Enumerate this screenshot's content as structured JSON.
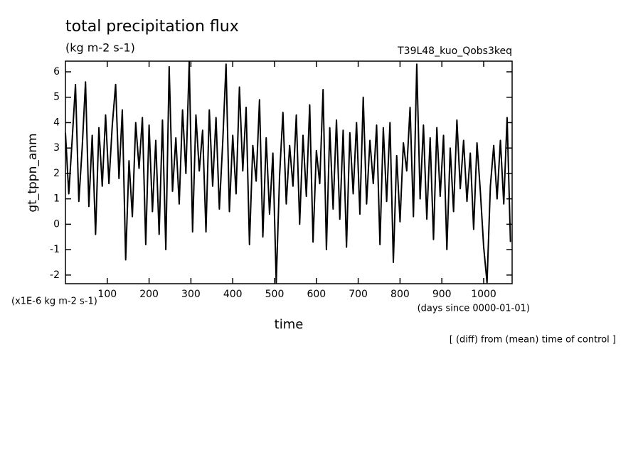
{
  "chart_data": {
    "type": "line",
    "title": "total precipitation flux",
    "subtitle": "(kg m-2 s-1)",
    "run_label": "T39L48_kuo_Qobs3keq",
    "y_label": "gt_tppn_anm",
    "y_units": "(x1E-6 kg m-2 s-1)",
    "x_label": "time",
    "x_units": "(days since 0000-01-01)",
    "note": "[ (diff) from (mean) time of control ]",
    "xlim": [
      0,
      1068
    ],
    "ylim": [
      -2.34,
      6.42
    ],
    "xticks": [
      100,
      200,
      300,
      400,
      500,
      600,
      700,
      800,
      900,
      1000
    ],
    "yticks": [
      -2,
      -1,
      0,
      1,
      2,
      3,
      4,
      5,
      6
    ],
    "x": [
      0,
      8,
      16,
      24,
      32,
      40,
      48,
      56,
      64,
      72,
      80,
      88,
      96,
      104,
      112,
      120,
      128,
      136,
      144,
      152,
      160,
      168,
      176,
      184,
      192,
      200,
      208,
      216,
      224,
      232,
      240,
      248,
      256,
      264,
      272,
      280,
      288,
      296,
      304,
      312,
      320,
      328,
      336,
      344,
      352,
      360,
      368,
      376,
      384,
      392,
      400,
      408,
      416,
      424,
      432,
      440,
      448,
      456,
      464,
      472,
      480,
      488,
      496,
      504,
      512,
      520,
      528,
      536,
      544,
      552,
      560,
      568,
      576,
      584,
      592,
      600,
      608,
      616,
      624,
      632,
      640,
      648,
      656,
      664,
      672,
      680,
      688,
      696,
      704,
      712,
      720,
      728,
      736,
      744,
      752,
      760,
      768,
      776,
      784,
      792,
      800,
      808,
      816,
      824,
      832,
      840,
      848,
      856,
      864,
      872,
      880,
      888,
      896,
      904,
      912,
      920,
      928,
      936,
      944,
      952,
      960,
      968,
      976,
      984,
      992,
      1000,
      1008,
      1016,
      1024,
      1032,
      1040,
      1048,
      1056,
      1064
    ],
    "series": [
      {
        "color": "#000000",
        "values": [
          3.6,
          1.2,
          3.3,
          5.5,
          0.9,
          3.0,
          5.6,
          0.7,
          3.5,
          -0.4,
          3.8,
          1.5,
          4.3,
          1.6,
          3.9,
          5.5,
          1.8,
          4.5,
          -1.4,
          2.5,
          0.3,
          4.0,
          2.2,
          4.2,
          -0.8,
          3.9,
          0.5,
          3.3,
          -0.4,
          4.1,
          -1.0,
          6.2,
          1.3,
          3.4,
          0.8,
          4.5,
          2.0,
          6.4,
          -0.3,
          4.3,
          2.1,
          3.7,
          -0.3,
          4.5,
          1.5,
          4.2,
          0.6,
          3.2,
          6.3,
          0.5,
          3.5,
          1.2,
          5.4,
          2.1,
          4.6,
          -0.8,
          3.1,
          1.7,
          4.9,
          -0.5,
          3.4,
          0.4,
          2.8,
          -2.3,
          1.9,
          4.4,
          0.8,
          3.1,
          1.5,
          4.3,
          0.0,
          3.5,
          1.1,
          4.7,
          -0.7,
          2.9,
          1.6,
          5.3,
          -1.0,
          3.8,
          0.6,
          4.1,
          0.2,
          3.7,
          -0.9,
          3.6,
          1.2,
          4.0,
          0.4,
          5.0,
          0.8,
          3.3,
          1.6,
          3.9,
          -0.8,
          3.8,
          0.9,
          4.0,
          -1.5,
          2.7,
          0.1,
          3.2,
          2.1,
          4.6,
          0.3,
          6.3,
          1.0,
          3.9,
          0.2,
          3.4,
          -0.6,
          3.8,
          1.1,
          3.5,
          -1.0,
          3.0,
          0.5,
          4.1,
          1.4,
          3.3,
          0.9,
          2.8,
          -0.2,
          3.2,
          1.3,
          -0.9,
          -2.3,
          1.5,
          3.1,
          1.0,
          3.3,
          0.8,
          4.2,
          -0.7
        ]
      }
    ]
  }
}
